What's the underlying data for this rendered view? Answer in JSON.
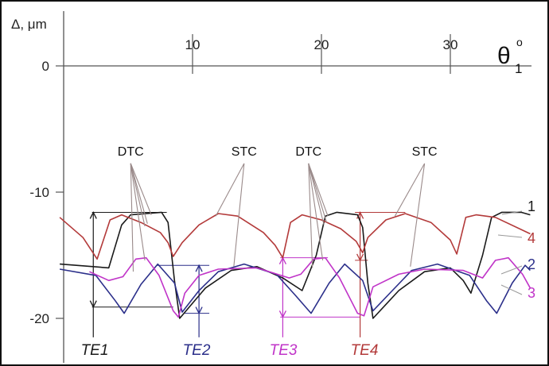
{
  "chart_data": {
    "type": "line",
    "ylabel": "Δ, μm",
    "xlabel": "θ1°",
    "xlabel_main": "θ",
    "xlabel_sub": "1",
    "xlabel_sup": "o",
    "xlim": [
      0,
      35
    ],
    "ylim": [
      -21.5,
      5
    ],
    "x_ticks": [
      10,
      20,
      30
    ],
    "y_ticks": [
      0,
      -10,
      -20
    ],
    "x_tick_labels": [
      "10",
      "20",
      "30"
    ],
    "y_tick_labels": [
      "0",
      "-10",
      "-20"
    ],
    "series": [
      {
        "name": "1",
        "color": "#1a1a1a",
        "points": [
          [
            -0.3,
            -15.7
          ],
          [
            3.5,
            -16.0
          ],
          [
            4.5,
            -12.6
          ],
          [
            5.2,
            -11.8
          ],
          [
            7.6,
            -11.6
          ],
          [
            8.1,
            -12.4
          ],
          [
            8.6,
            -17.0
          ],
          [
            9.0,
            -20.0
          ],
          [
            11.0,
            -17.6
          ],
          [
            13.0,
            -16.2
          ],
          [
            15.0,
            -15.9
          ],
          [
            17.0,
            -16.8
          ],
          [
            18.5,
            -17.8
          ],
          [
            19.6,
            -15.0
          ],
          [
            20.3,
            -11.9
          ],
          [
            21.2,
            -11.6
          ],
          [
            22.8,
            -11.8
          ],
          [
            23.2,
            -12.8
          ],
          [
            23.6,
            -17.2
          ],
          [
            24.0,
            -20.0
          ],
          [
            26.0,
            -17.8
          ],
          [
            28.0,
            -16.3
          ],
          [
            30.0,
            -16.0
          ],
          [
            31.0,
            -17.0
          ],
          [
            31.6,
            -18.0
          ],
          [
            32.5,
            -15.0
          ],
          [
            33.2,
            -12.0
          ],
          [
            34.0,
            -11.6
          ],
          [
            35.5,
            -11.6
          ],
          [
            36.2,
            -11.8
          ]
        ]
      },
      {
        "name": "2",
        "color": "#2b2f8a",
        "points": [
          [
            -0.3,
            -16.1
          ],
          [
            2.5,
            -16.6
          ],
          [
            4.0,
            -18.6
          ],
          [
            4.7,
            -19.6
          ],
          [
            6.0,
            -17.3
          ],
          [
            7.3,
            -15.7
          ],
          [
            8.6,
            -17.2
          ],
          [
            9.2,
            -19.5
          ],
          [
            10.5,
            -17.8
          ],
          [
            12.0,
            -16.3
          ],
          [
            14.0,
            -15.7
          ],
          [
            16.5,
            -16.5
          ],
          [
            18.0,
            -18.2
          ],
          [
            19.2,
            -19.6
          ],
          [
            20.6,
            -17.2
          ],
          [
            21.8,
            -15.7
          ],
          [
            23.2,
            -17.0
          ],
          [
            24.0,
            -19.4
          ],
          [
            25.5,
            -17.8
          ],
          [
            27.0,
            -16.2
          ],
          [
            29.0,
            -15.7
          ],
          [
            31.5,
            -16.6
          ],
          [
            32.8,
            -18.6
          ],
          [
            33.6,
            -19.6
          ],
          [
            34.8,
            -17.2
          ],
          [
            35.8,
            -15.8
          ],
          [
            36.2,
            -16.2
          ]
        ]
      },
      {
        "name": "3",
        "color": "#c034c8",
        "points": [
          [
            2.0,
            -16.3
          ],
          [
            3.5,
            -17.0
          ],
          [
            4.6,
            -16.7
          ],
          [
            5.6,
            -15.3
          ],
          [
            6.4,
            -15.2
          ],
          [
            7.4,
            -16.6
          ],
          [
            8.5,
            -19.4
          ],
          [
            8.9,
            -19.9
          ],
          [
            9.4,
            -18.0
          ],
          [
            10.5,
            -16.6
          ],
          [
            12.0,
            -16.1
          ],
          [
            15.0,
            -16.0
          ],
          [
            17.5,
            -16.8
          ],
          [
            18.4,
            -16.5
          ],
          [
            19.4,
            -15.3
          ],
          [
            20.3,
            -15.2
          ],
          [
            21.4,
            -16.8
          ],
          [
            22.8,
            -19.6
          ],
          [
            23.3,
            -19.8
          ],
          [
            24.0,
            -17.5
          ],
          [
            26.0,
            -16.5
          ],
          [
            28.0,
            -16.1
          ],
          [
            31.0,
            -16.2
          ],
          [
            32.5,
            -16.8
          ],
          [
            33.5,
            -15.4
          ],
          [
            34.5,
            -15.2
          ],
          [
            35.6,
            -16.5
          ],
          [
            36.2,
            -17.6
          ]
        ]
      },
      {
        "name": "4",
        "color": "#b33a3a",
        "points": [
          [
            -0.3,
            -12.0
          ],
          [
            1.5,
            -13.6
          ],
          [
            2.6,
            -15.3
          ],
          [
            3.6,
            -12.2
          ],
          [
            4.5,
            -11.8
          ],
          [
            6.0,
            -12.4
          ],
          [
            7.5,
            -13.2
          ],
          [
            8.1,
            -14.0
          ],
          [
            8.5,
            -15.1
          ],
          [
            9.2,
            -14.0
          ],
          [
            10.5,
            -12.6
          ],
          [
            12.0,
            -11.7
          ],
          [
            13.5,
            -11.9
          ],
          [
            15.5,
            -13.2
          ],
          [
            16.4,
            -14.2
          ],
          [
            17.0,
            -15.2
          ],
          [
            17.6,
            -12.4
          ],
          [
            18.5,
            -11.8
          ],
          [
            20.0,
            -12.2
          ],
          [
            21.5,
            -12.9
          ],
          [
            22.7,
            -13.9
          ],
          [
            23.2,
            -14.8
          ],
          [
            23.6,
            -13.6
          ],
          [
            25.0,
            -12.2
          ],
          [
            26.5,
            -11.7
          ],
          [
            28.5,
            -12.4
          ],
          [
            30.0,
            -13.8
          ],
          [
            30.5,
            -14.9
          ],
          [
            31.2,
            -12.0
          ],
          [
            32.0,
            -11.8
          ],
          [
            33.5,
            -12.0
          ],
          [
            36.2,
            -13.3
          ]
        ]
      }
    ],
    "series_labels": [
      "1",
      "4",
      "2",
      "3"
    ],
    "annotations": [
      {
        "text": "DTC",
        "x": 5.2,
        "y": -7.1,
        "color": "#111111"
      },
      {
        "text": "STC",
        "x": 14.0,
        "y": -7.1,
        "color": "#111111"
      },
      {
        "text": "DTC",
        "x": 19.0,
        "y": -7.1,
        "color": "#111111"
      },
      {
        "text": "STC",
        "x": 28.0,
        "y": -7.1,
        "color": "#111111"
      },
      {
        "text": "TE1",
        "color": "#1a1a1a"
      },
      {
        "text": "TE2",
        "color": "#2b2f8a"
      },
      {
        "text": "TE3",
        "color": "#c034c8"
      },
      {
        "text": "TE4",
        "color": "#b33a3a"
      }
    ],
    "grid": false
  }
}
